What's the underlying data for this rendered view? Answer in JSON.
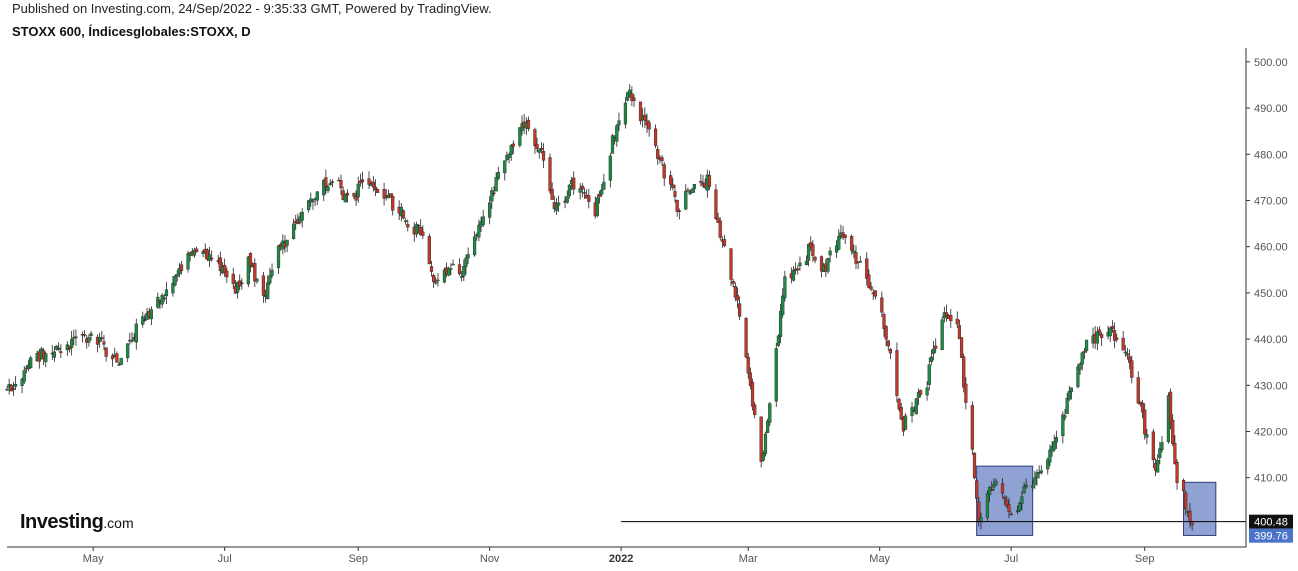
{
  "header": {
    "published": "Published on Investing.com, 24/Sep/2022 - 9:35:33 GMT, Powered by TradingView.",
    "symbol": "STOXX 600, Índicesglobales:STOXX, D"
  },
  "logo": {
    "main": "Investing",
    "suffix": ".com"
  },
  "chart_data": {
    "type": "candlestick",
    "title": "STOXX 600, Índicesglobales:STOXX, D",
    "ylim": [
      395,
      503
    ],
    "y_ticks": [
      "500.00",
      "490.00",
      "480.00",
      "470.00",
      "460.00",
      "450.00",
      "440.00",
      "430.00",
      "420.00",
      "410.00"
    ],
    "x_ticks": [
      {
        "label": "May",
        "date": "2021-05-01"
      },
      {
        "label": "Jul",
        "date": "2021-07-01"
      },
      {
        "label": "Sep",
        "date": "2021-09-01"
      },
      {
        "label": "Nov",
        "date": "2021-11-01"
      },
      {
        "label": "2022",
        "date": "2022-01-01",
        "bold": true
      },
      {
        "label": "Mar",
        "date": "2022-03-01"
      },
      {
        "label": "May",
        "date": "2022-05-01"
      },
      {
        "label": "Jul",
        "date": "2022-07-01"
      },
      {
        "label": "Sep",
        "date": "2022-09-01"
      }
    ],
    "x_range": [
      "2021-03-22",
      "2022-10-18"
    ],
    "close_path": [
      [
        "2021-03-22",
        429
      ],
      [
        "2021-04-05",
        436
      ],
      [
        "2021-04-19",
        439
      ],
      [
        "2021-05-03",
        440
      ],
      [
        "2021-05-12",
        435
      ],
      [
        "2021-05-24",
        444
      ],
      [
        "2021-06-07",
        452
      ],
      [
        "2021-06-16",
        459
      ],
      [
        "2021-06-30",
        456
      ],
      [
        "2021-07-08",
        450
      ],
      [
        "2021-07-12",
        458
      ],
      [
        "2021-07-19",
        448
      ],
      [
        "2021-07-26",
        459
      ],
      [
        "2021-08-09",
        469
      ],
      [
        "2021-08-20",
        475
      ],
      [
        "2021-08-27",
        470
      ],
      [
        "2021-09-06",
        474
      ],
      [
        "2021-09-20",
        468
      ],
      [
        "2021-10-01",
        462
      ],
      [
        "2021-10-06",
        452
      ],
      [
        "2021-10-13",
        456
      ],
      [
        "2021-10-18",
        453
      ],
      [
        "2021-10-26",
        464
      ],
      [
        "2021-11-08",
        478
      ],
      [
        "2021-11-17",
        487
      ],
      [
        "2021-11-26",
        480
      ],
      [
        "2021-12-01",
        467
      ],
      [
        "2021-12-10",
        474
      ],
      [
        "2021-12-20",
        468
      ],
      [
        "2021-12-31",
        488
      ],
      [
        "2022-01-05",
        494
      ],
      [
        "2022-01-14",
        484
      ],
      [
        "2022-01-28",
        468
      ],
      [
        "2022-02-02",
        473
      ],
      [
        "2022-02-10",
        474
      ],
      [
        "2022-02-24",
        448
      ],
      [
        "2022-03-07",
        413
      ],
      [
        "2022-03-11",
        425
      ],
      [
        "2022-03-18",
        453
      ],
      [
        "2022-03-29",
        459
      ],
      [
        "2022-04-05",
        455
      ],
      [
        "2022-04-13",
        462
      ],
      [
        "2022-04-21",
        457
      ],
      [
        "2022-05-02",
        445
      ],
      [
        "2022-05-12",
        421
      ],
      [
        "2022-05-23",
        431
      ],
      [
        "2022-05-31",
        446
      ],
      [
        "2022-06-06",
        443
      ],
      [
        "2022-06-13",
        415
      ],
      [
        "2022-06-16",
        402
      ],
      [
        "2022-06-24",
        409
      ],
      [
        "2022-07-01",
        402
      ],
      [
        "2022-07-06",
        406
      ],
      [
        "2022-07-15",
        412
      ],
      [
        "2022-07-25",
        423
      ],
      [
        "2022-08-05",
        439
      ],
      [
        "2022-08-16",
        443
      ],
      [
        "2022-08-26",
        433
      ],
      [
        "2022-09-06",
        411
      ],
      [
        "2022-09-12",
        427
      ],
      [
        "2022-09-16",
        410
      ],
      [
        "2022-09-23",
        399.76
      ]
    ],
    "reference_line": {
      "label": "400.48",
      "value": 400.48,
      "start_date": "2022-01-01"
    },
    "last_price": {
      "label": "399.76",
      "value": 399.76
    },
    "highlight_boxes": [
      {
        "start": "2022-06-15",
        "end": "2022-07-11",
        "low": 397.5,
        "high": 412.5
      },
      {
        "start": "2022-09-19",
        "end": "2022-10-04",
        "low": 397.5,
        "high": 409
      }
    ],
    "colors": {
      "up": "#1e8a44",
      "down": "#c0392b",
      "box_fill": "#7186c7",
      "box_stroke": "#2e3f7a",
      "last_price_tag": "#4a74c9",
      "reference_tag": "#111111"
    }
  }
}
